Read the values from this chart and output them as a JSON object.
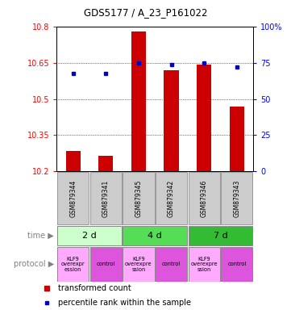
{
  "title": "GDS5177 / A_23_P161022",
  "samples": [
    "GSM879344",
    "GSM879341",
    "GSM879345",
    "GSM879342",
    "GSM879346",
    "GSM879343"
  ],
  "transformed_counts": [
    10.285,
    10.265,
    10.78,
    10.62,
    10.645,
    10.47
  ],
  "percentile_ranks": [
    68,
    68,
    75,
    74,
    75,
    72
  ],
  "ylim_left": [
    10.2,
    10.8
  ],
  "ylim_right": [
    0,
    100
  ],
  "yticks_left": [
    10.2,
    10.35,
    10.5,
    10.65,
    10.8
  ],
  "yticks_right": [
    0,
    25,
    50,
    75,
    100
  ],
  "bar_color": "#CC0000",
  "dot_color": "#0000CC",
  "bar_bottom": 10.2,
  "time_groups": [
    {
      "label": "2 d",
      "start": 0,
      "end": 2,
      "color": "#ccffcc"
    },
    {
      "label": "4 d",
      "start": 2,
      "end": 4,
      "color": "#55dd55"
    },
    {
      "label": "7 d",
      "start": 4,
      "end": 6,
      "color": "#33bb33"
    }
  ],
  "proto_labels": [
    "KLF9\noverexpr\nession",
    "control",
    "KLF9\noverexpre\nssion",
    "control",
    "KLF9\noverexpre\nssion",
    "control"
  ],
  "proto_colors": [
    "#ffaaff",
    "#dd55dd",
    "#ffaaff",
    "#dd55dd",
    "#ffaaff",
    "#dd55dd"
  ],
  "legend_bar_label": "transformed count",
  "legend_dot_label": "percentile rank within the sample",
  "sample_bg_color": "#cccccc",
  "sample_border_color": "#999999",
  "time_label": "time",
  "protocol_label": "protocol"
}
